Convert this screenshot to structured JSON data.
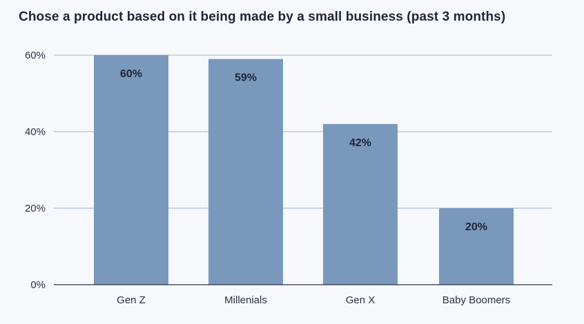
{
  "chart_data": {
    "type": "bar",
    "title": "Chose a product based on it being made by a small business (past 3 months)",
    "categories": [
      "Gen Z",
      "Millenials",
      "Gen X",
      "Baby Boomers"
    ],
    "values": [
      60,
      59,
      42,
      20
    ],
    "data_labels": [
      "60%",
      "59%",
      "42%",
      "20%"
    ],
    "xlabel": "",
    "ylabel": "",
    "ylim": [
      0,
      60
    ],
    "y_ticks": [
      0,
      20,
      40,
      60
    ],
    "y_tick_labels": [
      "0%",
      "20%",
      "40%",
      "60%"
    ],
    "grid": true,
    "legend": "none"
  },
  "colors": {
    "bar": "#7a98bc",
    "grid": "#9fb4cb",
    "axis": "#2a3342",
    "title": "#1d2736",
    "background": "#f6f8fb"
  }
}
